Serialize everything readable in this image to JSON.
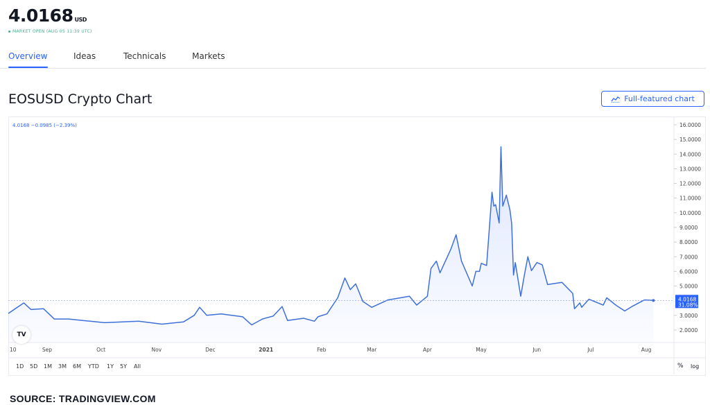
{
  "header": {
    "price": "4.0168",
    "currency": "USD",
    "status": "MARKET OPEN (AUG 05 11:39 UTC)"
  },
  "tabs": [
    {
      "label": "Overview",
      "active": true
    },
    {
      "label": "Ideas"
    },
    {
      "label": "Technicals"
    },
    {
      "label": "Markets"
    }
  ],
  "section_title": "EOSUSD Crypto Chart",
  "full_chart_button": "Full-featured chart",
  "legend": "4.0168 −0.0985 (−2.39%)",
  "last_price_label": "4.0168",
  "last_pct_label": "31.08%",
  "logo": "TV",
  "ranges": [
    "1D",
    "5D",
    "1M",
    "3M",
    "6M",
    "YTD",
    "1Y",
    "5Y",
    "All"
  ],
  "scale_buttons": {
    "percent": "%",
    "log": "log"
  },
  "source": "SOURCE: TRADINGVIEW.COM",
  "colors": {
    "accent": "#2962ff",
    "line": "#3d6fd9",
    "status": "#4caf8a"
  },
  "chart_data": {
    "type": "area",
    "ylim": [
      1.5,
      16.5
    ],
    "yticks": [
      "16.0000",
      "15.0000",
      "14.0000",
      "13.0000",
      "12.0000",
      "11.0000",
      "10.0000",
      "9.0000",
      "8.0000",
      "7.0000",
      "6.0000",
      "5.0000",
      "3.0000",
      "2.0000"
    ],
    "xticks": [
      {
        "label": "10",
        "date": "2020-08-10"
      },
      {
        "label": "Sep",
        "date": "2020-09-01"
      },
      {
        "label": "Oct",
        "date": "2020-10-01"
      },
      {
        "label": "Nov",
        "date": "2020-11-01"
      },
      {
        "label": "Dec",
        "date": "2020-12-01"
      },
      {
        "label": "2021",
        "date": "2021-01-01"
      },
      {
        "label": "Feb",
        "date": "2021-02-01"
      },
      {
        "label": "Mar",
        "date": "2021-03-01"
      },
      {
        "label": "Apr",
        "date": "2021-04-01"
      },
      {
        "label": "May",
        "date": "2021-05-01"
      },
      {
        "label": "Jun",
        "date": "2021-06-01"
      },
      {
        "label": "Jul",
        "date": "2021-07-01"
      },
      {
        "label": "Aug",
        "date": "2021-08-01"
      }
    ],
    "last_value": 4.0168,
    "series": [
      {
        "points": [
          [
            "2020-08-10",
            3.1
          ],
          [
            "2020-08-19",
            3.85
          ],
          [
            "2020-08-23",
            3.4
          ],
          [
            "2020-08-30",
            3.45
          ],
          [
            "2020-09-05",
            2.75
          ],
          [
            "2020-09-13",
            2.75
          ],
          [
            "2020-09-25",
            2.6
          ],
          [
            "2020-10-03",
            2.5
          ],
          [
            "2020-10-22",
            2.6
          ],
          [
            "2020-11-04",
            2.4
          ],
          [
            "2020-11-16",
            2.55
          ],
          [
            "2020-11-22",
            3.0
          ],
          [
            "2020-11-25",
            3.55
          ],
          [
            "2020-11-29",
            3.0
          ],
          [
            "2020-12-07",
            3.1
          ],
          [
            "2020-12-19",
            2.9
          ],
          [
            "2020-12-24",
            2.35
          ],
          [
            "2020-12-30",
            2.75
          ],
          [
            "2021-01-05",
            2.95
          ],
          [
            "2021-01-10",
            3.6
          ],
          [
            "2021-01-13",
            2.65
          ],
          [
            "2021-01-22",
            2.8
          ],
          [
            "2021-01-28",
            2.6
          ],
          [
            "2021-01-30",
            2.9
          ],
          [
            "2021-02-04",
            3.1
          ],
          [
            "2021-02-10",
            4.2
          ],
          [
            "2021-02-14",
            5.55
          ],
          [
            "2021-02-17",
            4.75
          ],
          [
            "2021-02-20",
            5.15
          ],
          [
            "2021-02-24",
            3.95
          ],
          [
            "2021-03-01",
            3.55
          ],
          [
            "2021-03-10",
            4.05
          ],
          [
            "2021-03-22",
            4.3
          ],
          [
            "2021-03-26",
            3.7
          ],
          [
            "2021-04-01",
            4.3
          ],
          [
            "2021-04-03",
            6.2
          ],
          [
            "2021-04-06",
            6.7
          ],
          [
            "2021-04-08",
            5.9
          ],
          [
            "2021-04-14",
            7.5
          ],
          [
            "2021-04-17",
            8.5
          ],
          [
            "2021-04-20",
            6.7
          ],
          [
            "2021-04-26",
            5.0
          ],
          [
            "2021-04-28",
            6.0
          ],
          [
            "2021-04-30",
            6.0
          ],
          [
            "2021-05-01",
            6.55
          ],
          [
            "2021-05-04",
            6.4
          ],
          [
            "2021-05-07",
            11.4
          ],
          [
            "2021-05-08",
            10.45
          ],
          [
            "2021-05-09",
            10.55
          ],
          [
            "2021-05-11",
            9.3
          ],
          [
            "2021-05-12",
            14.5
          ],
          [
            "2021-05-13",
            10.45
          ],
          [
            "2021-05-15",
            11.2
          ],
          [
            "2021-05-17",
            10.2
          ],
          [
            "2021-05-18",
            9.25
          ],
          [
            "2021-05-19",
            5.75
          ],
          [
            "2021-05-20",
            6.6
          ],
          [
            "2021-05-23",
            4.3
          ],
          [
            "2021-05-25",
            5.7
          ],
          [
            "2021-05-27",
            7.0
          ],
          [
            "2021-05-29",
            6.05
          ],
          [
            "2021-06-01",
            6.6
          ],
          [
            "2021-06-04",
            6.45
          ],
          [
            "2021-06-07",
            5.1
          ],
          [
            "2021-06-15",
            5.25
          ],
          [
            "2021-06-21",
            4.5
          ],
          [
            "2021-06-22",
            3.45
          ],
          [
            "2021-06-25",
            3.85
          ],
          [
            "2021-06-26",
            3.55
          ],
          [
            "2021-06-30",
            4.1
          ],
          [
            "2021-07-08",
            3.7
          ],
          [
            "2021-07-10",
            4.2
          ],
          [
            "2021-07-15",
            3.7
          ],
          [
            "2021-07-20",
            3.3
          ],
          [
            "2021-07-24",
            3.6
          ],
          [
            "2021-07-31",
            4.05
          ],
          [
            "2021-08-05",
            4.0168
          ]
        ]
      }
    ]
  }
}
